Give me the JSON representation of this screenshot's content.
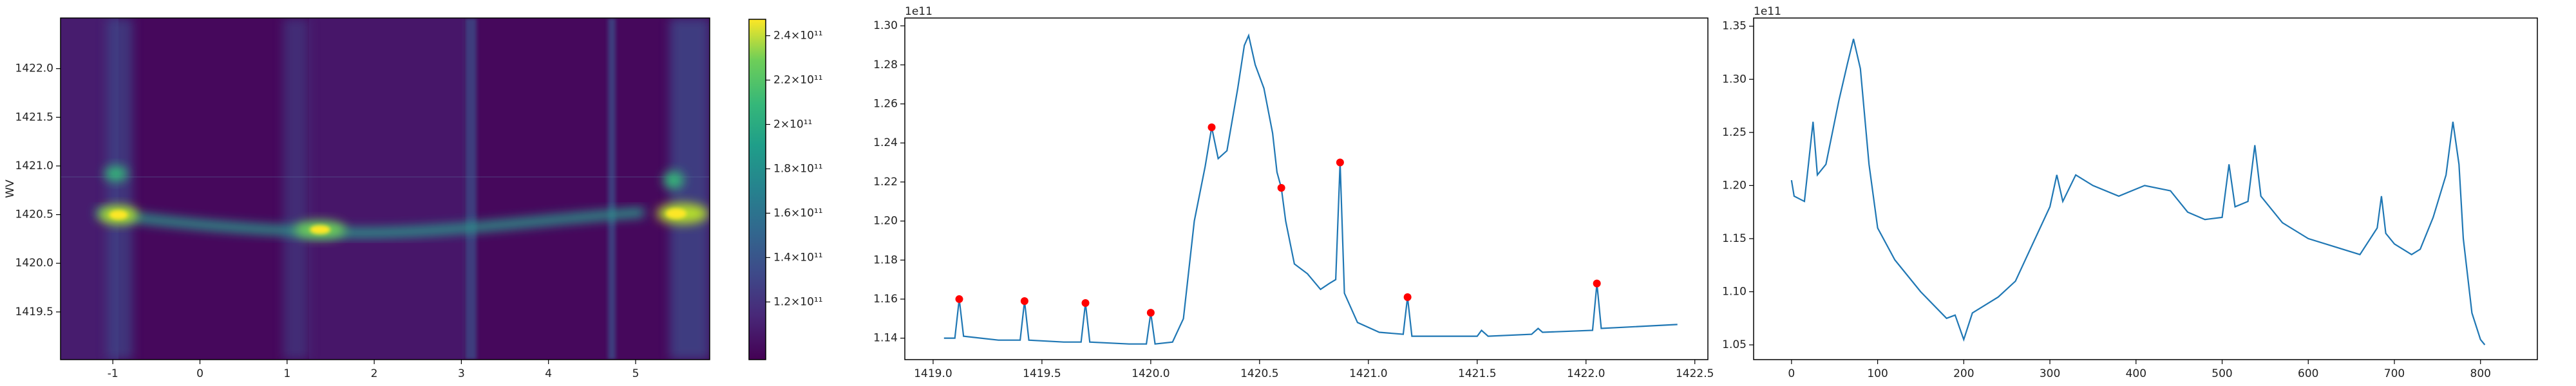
{
  "chart_data": [
    {
      "type": "heatmap",
      "colormap": "viridis",
      "ylabel": "WV",
      "xlim": [
        -1.6,
        5.85
      ],
      "ylim": [
        1419.01,
        1422.52
      ],
      "xticks": [
        -1,
        0,
        1,
        2,
        3,
        4,
        5
      ],
      "yticks": [
        1419.5,
        {
          "value": 1420.0,
          "label": "1420.0"
        },
        1420.5,
        {
          "value": 1421.0,
          "label": "1421.0"
        },
        1421.5,
        {
          "value": 1422.0,
          "label": "1422.0"
        }
      ],
      "clim": [
        94000000000,
        247400000000
      ],
      "cticks": [
        {
          "value": 120000000000,
          "label": "1.2×10¹¹"
        },
        {
          "value": 140000000000,
          "label": "1.4×10¹¹"
        },
        {
          "value": 160000000000,
          "label": "1.6×10¹¹"
        },
        {
          "value": 180000000000,
          "label": "1.8×10¹¹"
        },
        {
          "value": 200000000000,
          "label": "2×10¹¹"
        },
        {
          "value": 220000000000,
          "label": "2.2×10¹¹"
        },
        {
          "value": 240000000000,
          "label": "2.4×10¹¹"
        }
      ]
    },
    {
      "type": "line",
      "offset_label": "1e11",
      "xlim": [
        1418.87,
        1422.56
      ],
      "ylim": [
        1.129,
        1.304
      ],
      "xticks": [
        {
          "value": 1419.0,
          "label": "1419.0"
        },
        1419.5,
        {
          "value": 1420.0,
          "label": "1420.0"
        },
        1420.5,
        {
          "value": 1421.0,
          "label": "1421.0"
        },
        1421.5,
        {
          "value": 1422.0,
          "label": "1422.0"
        },
        1422.5
      ],
      "yticks": [
        1.14,
        1.16,
        1.18,
        {
          "value": 1.2,
          "label": "1.20"
        },
        1.22,
        1.24,
        1.26,
        1.28,
        {
          "value": 1.3,
          "label": "1.30"
        }
      ],
      "series": [
        {
          "type": "line",
          "color": "#1f77b4",
          "x": [
            1419.05,
            1419.1,
            1419.12,
            1419.14,
            1419.3,
            1419.4,
            1419.42,
            1419.44,
            1419.6,
            1419.68,
            1419.7,
            1419.72,
            1419.9,
            1419.98,
            1420.0,
            1420.02,
            1420.1,
            1420.15,
            1420.2,
            1420.25,
            1420.28,
            1420.31,
            1420.35,
            1420.4,
            1420.43,
            1420.45,
            1420.48,
            1420.52,
            1420.56,
            1420.58,
            1420.6,
            1420.62,
            1420.66,
            1420.72,
            1420.78,
            1420.82,
            1420.85,
            1420.87,
            1420.89,
            1420.95,
            1421.05,
            1421.16,
            1421.18,
            1421.2,
            1421.5,
            1421.52,
            1421.55,
            1421.75,
            1421.78,
            1421.8,
            1422.03,
            1422.05,
            1422.07,
            1422.42
          ],
          "values": [
            1.14,
            1.14,
            1.16,
            1.141,
            1.139,
            1.139,
            1.159,
            1.139,
            1.138,
            1.138,
            1.158,
            1.138,
            1.137,
            1.137,
            1.153,
            1.137,
            1.138,
            1.15,
            1.2,
            1.228,
            1.248,
            1.232,
            1.236,
            1.268,
            1.29,
            1.295,
            1.28,
            1.268,
            1.245,
            1.225,
            1.217,
            1.2,
            1.178,
            1.173,
            1.165,
            1.168,
            1.17,
            1.23,
            1.163,
            1.148,
            1.143,
            1.142,
            1.161,
            1.141,
            1.141,
            1.144,
            1.141,
            1.142,
            1.145,
            1.143,
            1.144,
            1.168,
            1.145,
            1.147
          ]
        },
        {
          "type": "scatter",
          "color": "#ff0000",
          "x": [
            1419.12,
            1419.42,
            1419.7,
            1420.0,
            1420.28,
            1420.6,
            1420.87,
            1421.18,
            1422.05
          ],
          "values": [
            1.16,
            1.159,
            1.158,
            1.153,
            1.248,
            1.217,
            1.23,
            1.161,
            1.168
          ]
        }
      ]
    },
    {
      "type": "line",
      "offset_label": "1e11",
      "xlim": [
        -44,
        866
      ],
      "ylim": [
        1.0361,
        1.3577
      ],
      "xticks": [
        0,
        100,
        200,
        300,
        400,
        500,
        600,
        700,
        800
      ],
      "yticks": [
        1.05,
        {
          "value": 1.1,
          "label": "1.10"
        },
        1.15,
        {
          "value": 1.2,
          "label": "1.20"
        },
        1.25,
        {
          "value": 1.3,
          "label": "1.30"
        },
        1.35
      ],
      "series": [
        {
          "type": "line",
          "color": "#1f77b4",
          "x": [
            0,
            3,
            15,
            25,
            30,
            40,
            55,
            65,
            72,
            80,
            90,
            100,
            120,
            150,
            180,
            190,
            200,
            210,
            240,
            260,
            280,
            300,
            308,
            315,
            330,
            350,
            380,
            410,
            440,
            460,
            480,
            500,
            508,
            515,
            530,
            538,
            545,
            570,
            600,
            640,
            660,
            680,
            685,
            690,
            700,
            720,
            730,
            745,
            760,
            768,
            775,
            780,
            790,
            800,
            805
          ],
          "values": [
            1.205,
            1.19,
            1.185,
            1.26,
            1.21,
            1.22,
            1.28,
            1.315,
            1.338,
            1.31,
            1.22,
            1.16,
            1.13,
            1.1,
            1.075,
            1.078,
            1.055,
            1.08,
            1.095,
            1.11,
            1.145,
            1.18,
            1.21,
            1.185,
            1.21,
            1.2,
            1.19,
            1.2,
            1.195,
            1.175,
            1.168,
            1.17,
            1.22,
            1.18,
            1.185,
            1.238,
            1.19,
            1.165,
            1.15,
            1.14,
            1.135,
            1.16,
            1.19,
            1.155,
            1.145,
            1.135,
            1.14,
            1.17,
            1.21,
            1.26,
            1.22,
            1.15,
            1.08,
            1.055,
            1.05
          ]
        }
      ]
    }
  ]
}
